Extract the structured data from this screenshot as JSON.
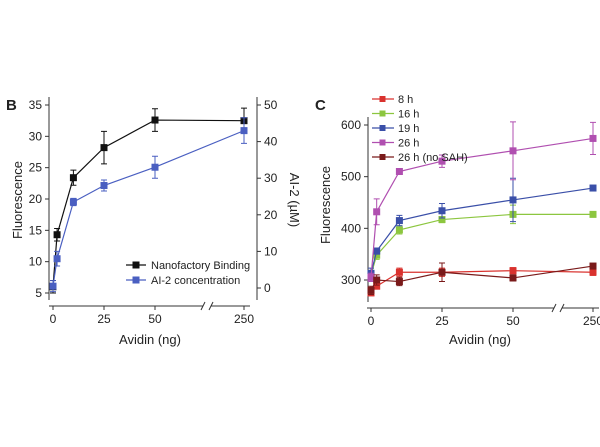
{
  "chart_data": [
    {
      "type": "line",
      "panel_label": "B",
      "xlabel": "Avidin (ng)",
      "ylabel": "Fluorescence",
      "y2label": "AI-2 (µM)",
      "x_ticks": [
        0,
        25,
        50,
        250
      ],
      "y_ticks": [
        5,
        10,
        15,
        20,
        25,
        30,
        35
      ],
      "y2_ticks": [
        0,
        10,
        20,
        30,
        40,
        50
      ],
      "ylim": [
        3,
        35.5
      ],
      "y2lim": [
        -5,
        50
      ],
      "x_axis_break": "between 50 and 250",
      "legend_position": "bottom-right",
      "x": [
        0,
        2,
        10,
        25,
        50,
        250
      ],
      "series": [
        {
          "name": "Nanofactory Binding",
          "axis": "left",
          "color": "#111111",
          "values": [
            6,
            14.3,
            23.4,
            28.2,
            32.6,
            32.5
          ],
          "errors": [
            1,
            1,
            1.2,
            2.6,
            1.8,
            2
          ]
        },
        {
          "name": "AI-2 concentration",
          "axis": "right",
          "color": "#4a5fc1",
          "values": [
            0.5,
            8,
            23.5,
            28,
            33,
            43
          ],
          "errors": [
            1.5,
            2,
            1,
            1.5,
            3,
            3.5
          ]
        }
      ]
    },
    {
      "type": "line",
      "panel_label": "C",
      "xlabel": "Avidin (ng)",
      "ylabel": "Fluorescence",
      "x_ticks": [
        0,
        25,
        50,
        250
      ],
      "y_ticks": [
        300,
        400,
        500,
        600
      ],
      "ylim": [
        250,
        650
      ],
      "x_axis_break": "between 50 and 250",
      "legend_position": "top-left",
      "x": [
        0,
        2,
        10,
        25,
        50,
        250
      ],
      "series": [
        {
          "name": "8 h",
          "color": "#d9322e",
          "values": [
            275,
            288,
            315,
            315,
            318,
            315
          ],
          "errors": [
            5,
            5,
            8,
            8,
            6,
            6
          ]
        },
        {
          "name": "16 h",
          "color": "#8cc63f",
          "values": [
            310,
            348,
            397,
            417,
            427,
            427
          ],
          "errors": [
            8,
            8,
            8,
            6,
            18,
            4
          ]
        },
        {
          "name": "19 h",
          "color": "#3a4fa8",
          "values": [
            313,
            356,
            415,
            434,
            455,
            478
          ],
          "errors": [
            10,
            6,
            10,
            14,
            42,
            4
          ]
        },
        {
          "name": "26 h",
          "color": "#b04fb0",
          "values": [
            305,
            432,
            510,
            530,
            550,
            574
          ],
          "errors": [
            8,
            25,
            4,
            12,
            56,
            31
          ]
        },
        {
          "name": "26 h (no SAH)",
          "color": "#7a1a1a",
          "values": [
            280,
            300,
            297,
            315,
            304,
            327
          ],
          "errors": [
            8,
            10,
            8,
            18,
            6,
            5
          ]
        }
      ]
    }
  ]
}
